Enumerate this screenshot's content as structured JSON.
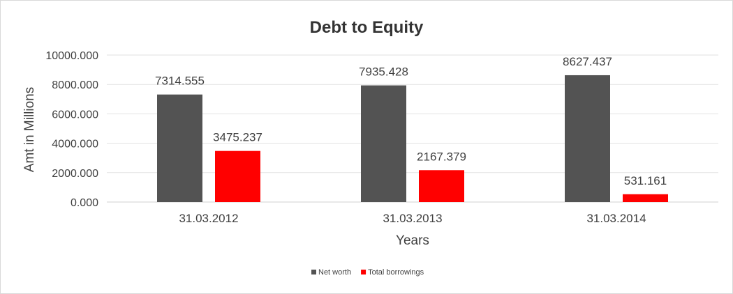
{
  "chart_data": {
    "type": "bar",
    "title": "Debt to Equity",
    "xlabel": "Years",
    "ylabel": "Amt in Millions",
    "categories": [
      "31.03.2012",
      "31.03.2013",
      "31.03.2014"
    ],
    "series": [
      {
        "name": "Net worth",
        "color": "#535353",
        "values": [
          7314.555,
          7935.428,
          8627.437
        ],
        "labels": [
          "7314.555",
          "7935.428",
          "8627.437"
        ]
      },
      {
        "name": "Total borrowings",
        "color": "#ff0000",
        "values": [
          3475.237,
          2167.379,
          531.161
        ],
        "labels": [
          "3475.237",
          "2167.379",
          "531.161"
        ]
      }
    ],
    "ylim": [
      0,
      10000
    ],
    "yticks": [
      0,
      2000,
      4000,
      6000,
      8000,
      10000
    ],
    "ytick_labels": [
      "0.000",
      "2000.000",
      "4000.000",
      "6000.000",
      "8000.000",
      "10000.000"
    ],
    "grid": true,
    "legend_position": "bottom"
  }
}
